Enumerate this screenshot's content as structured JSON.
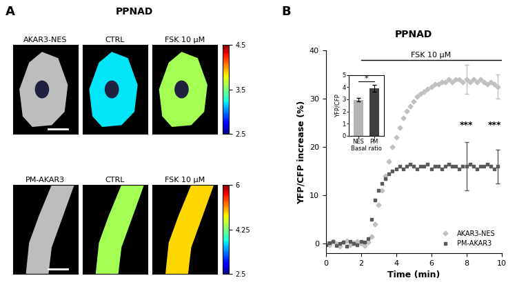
{
  "panel_labels": [
    "A",
    "B"
  ],
  "panel_a": {
    "title": "PPNAD",
    "rows": [
      {
        "titles": [
          "AKAR3-NES",
          "CTRL",
          "FSK 10 µM"
        ],
        "colorbar_range": [
          2.5,
          4.5
        ],
        "colorbar_ticks": [
          2.5,
          3.5,
          4.5
        ]
      },
      {
        "titles": [
          "PM-AKAR3",
          "CTRL",
          "FSK 10 µM"
        ],
        "colorbar_range": [
          2.5,
          6
        ],
        "colorbar_ticks": [
          2.5,
          4.25,
          6
        ]
      }
    ]
  },
  "chart_data": [
    {
      "type": "scatter",
      "title": "PPNAD",
      "x_label": "Time (min)",
      "y_label": "YFP/CFP increase (%)",
      "x": [
        0,
        0.2,
        0.4,
        0.6,
        0.8,
        1,
        1.2,
        1.4,
        1.6,
        1.8,
        2,
        2.2,
        2.4,
        2.6,
        2.8,
        3,
        3.2,
        3.4,
        3.6,
        3.8,
        4,
        4.2,
        4.4,
        4.6,
        4.8,
        5,
        5.2,
        5.4,
        5.6,
        5.8,
        6,
        6.2,
        6.4,
        6.6,
        6.8,
        7,
        7.2,
        7.4,
        7.6,
        7.8,
        8,
        8.2,
        8.4,
        8.6,
        8.8,
        9,
        9.2,
        9.4,
        9.6,
        9.8
      ],
      "series": [
        {
          "name": "AKAR3-NES",
          "color": "#c0c0c0",
          "marker": "diamond",
          "line_style": "none",
          "values": [
            0.2,
            -0.3,
            0.4,
            0.1,
            -0.5,
            0.3,
            0.6,
            -0.2,
            0.2,
            0.5,
            0.1,
            -0.4,
            0.3,
            1.5,
            4,
            8,
            11,
            14,
            17,
            20,
            22,
            24,
            26,
            27.5,
            28.5,
            29.5,
            30.5,
            31,
            31.5,
            32,
            32.5,
            33,
            33,
            33.5,
            33.5,
            34,
            33.5,
            34,
            34,
            33.5,
            34,
            33.5,
            34,
            33.5,
            34,
            33.5,
            33,
            33.5,
            33,
            32.5
          ],
          "error_bars": {
            "x": [
              8,
              9.8
            ],
            "errors": [
              3,
              2.5
            ]
          }
        },
        {
          "name": "PM-AKAR3",
          "color": "#595959",
          "marker": "square",
          "line_style": "none",
          "values": [
            -0.3,
            0.2,
            0.5,
            -0.4,
            0.1,
            0.3,
            -0.6,
            0.4,
            0.0,
            -0.2,
            0.5,
            0.3,
            1,
            5,
            9,
            11,
            12.5,
            13.5,
            14.5,
            15,
            15.5,
            16,
            15.5,
            16,
            16.5,
            16,
            15.5,
            16,
            16,
            16.5,
            15.5,
            16,
            16,
            15.5,
            16,
            16.5,
            16,
            16,
            15.5,
            16,
            16,
            16.5,
            16,
            15.5,
            16,
            16,
            16.5,
            16,
            15.5,
            16
          ],
          "error_bars": {
            "x": [
              8,
              9.8
            ],
            "errors": [
              5,
              3.5
            ]
          }
        }
      ],
      "xlim": [
        0,
        10
      ],
      "xticks": [
        0,
        2,
        4,
        6,
        8,
        10
      ],
      "ylim": [
        -2,
        40
      ],
      "yticks": [
        0,
        10,
        20,
        30,
        40
      ],
      "legend": "lower right",
      "grid": false,
      "annotations": [
        {
          "text": "FSK 10 µM",
          "x": [
            2,
            10
          ],
          "y": 38
        },
        {
          "text": "***",
          "x": 8,
          "y": 24.5
        },
        {
          "text": "***",
          "x": 9.6,
          "y": 24.5
        }
      ]
    },
    {
      "type": "bar",
      "x_label": "Basal ratio",
      "y_label": "YFP/CFP",
      "categories": [
        "NES",
        "PM"
      ],
      "values": [
        2.95,
        3.9
      ],
      "errors": [
        0.15,
        0.3
      ],
      "colors": [
        "#b3b3b3",
        "#404040"
      ],
      "ylim": [
        0,
        5
      ],
      "yticks": [
        0,
        1,
        2,
        3,
        4,
        5
      ],
      "grid": false,
      "annotations": [
        {
          "text": "*",
          "x": [
            0,
            1
          ],
          "y": 4.5
        }
      ]
    }
  ]
}
